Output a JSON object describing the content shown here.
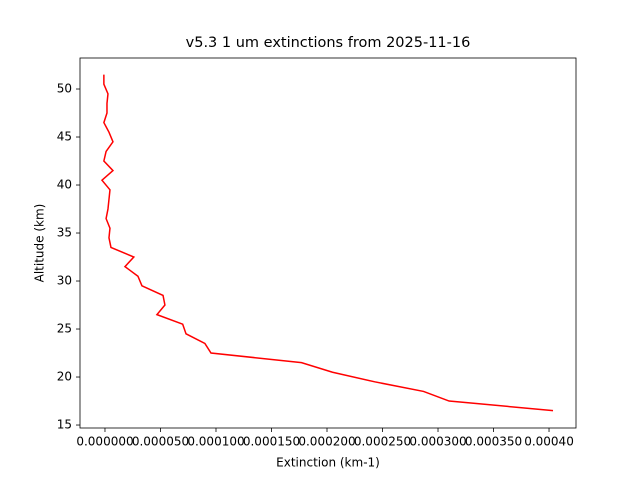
{
  "chart_data": {
    "type": "line",
    "title": "v5.3 1 um extinctions from 2025-11-16",
    "x_label": "Extinction (km-1)",
    "y_label": "Altitude (km)",
    "color": "#ff0000",
    "x": [
      0.0004036,
      0.00031,
      0.000287,
      0.000243,
      0.000205,
      0.000177,
      9.55e-05,
      9e-05,
      7.3e-05,
      7e-05,
      4.68e-05,
      5.4e-05,
      5.23e-05,
      3.33e-05,
      2.97e-05,
      1.8e-05,
      2.6e-05,
      5.4e-06,
      3.6e-06,
      4.5e-06,
      1e-06,
      2.7e-06,
      3.6e-06,
      4.5e-06,
      -2.7e-06,
      7.2e-06,
      -1e-06,
      1e-06,
      7.2e-06,
      3.6e-06,
      -1e-06,
      1.8e-06,
      1.8e-06,
      2.7e-06,
      -1e-06,
      -1e-06
    ],
    "y": [
      16.5,
      17.5,
      18.5,
      19.5,
      20.5,
      21.5,
      22.5,
      23.5,
      24.5,
      25.5,
      26.5,
      27.5,
      28.5,
      29.5,
      30.5,
      31.5,
      32.5,
      33.5,
      34.5,
      35.5,
      36.5,
      37.5,
      38.5,
      39.5,
      40.5,
      41.5,
      42.5,
      43.5,
      44.5,
      45.5,
      46.5,
      47.5,
      48.5,
      49.5,
      50.5,
      51.5
    ],
    "xlim": [
      -2.25e-05,
      0.0004243
    ],
    "ylim": [
      14.69,
      53.23
    ],
    "xticks": [
      {
        "value": 0,
        "label": "0.000000"
      },
      {
        "value": 5e-05,
        "label": "0.000050"
      },
      {
        "value": 0.0001,
        "label": "0.000100"
      },
      {
        "value": 0.00015,
        "label": "0.000150"
      },
      {
        "value": 0.0002,
        "label": "0.000200"
      },
      {
        "value": 0.00025,
        "label": "0.000250"
      },
      {
        "value": 0.0003,
        "label": "0.000300"
      },
      {
        "value": 0.00035,
        "label": "0.000350"
      },
      {
        "value": 0.0004,
        "label": "0.00040"
      }
    ],
    "yticks": [
      15,
      20,
      25,
      30,
      35,
      40,
      45,
      50
    ]
  }
}
